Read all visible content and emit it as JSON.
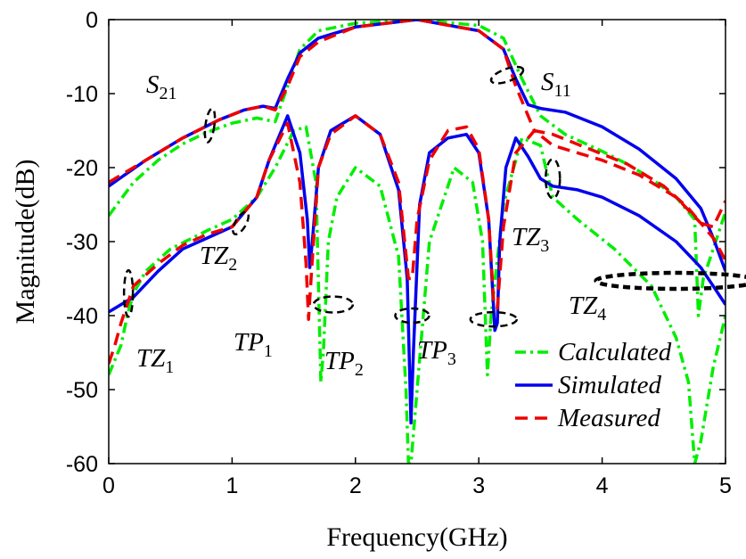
{
  "chart_data": {
    "type": "line",
    "title": "",
    "xlabel": "Frequency(GHz)",
    "ylabel": "Magnitude(dB)",
    "xlim": [
      0,
      5
    ],
    "ylim": [
      -60,
      0
    ],
    "xticks": [
      0,
      1,
      2,
      3,
      4,
      5
    ],
    "yticks": [
      0,
      -10,
      -20,
      -30,
      -40,
      -50,
      -60
    ],
    "xtick_labels": [
      "0",
      "1",
      "2",
      "3",
      "4",
      "5"
    ],
    "ytick_labels": [
      "0",
      "-10",
      "-20",
      "-30",
      "-40",
      "-50",
      "-60"
    ],
    "grid": false,
    "legend_position": "bottom-right",
    "series": [
      {
        "name": "Calculated",
        "color": "#00ee00",
        "dash": "dash-dot",
        "curves": [
          {
            "label": "S21",
            "x": [
              0,
              0.2,
              0.4,
              0.6,
              0.8,
              1.0,
              1.2,
              1.35,
              1.45,
              1.55,
              1.7,
              2.0,
              2.5,
              3.0,
              3.2,
              3.35,
              3.5,
              3.7,
              4.0,
              4.2,
              4.4,
              4.6,
              4.75,
              4.78,
              4.82,
              4.9,
              5.0
            ],
            "y": [
              -26.5,
              -22,
              -19,
              -16.8,
              -15.2,
              -14,
              -13.3,
              -13.8,
              -9,
              -4,
              -1.5,
              -0.5,
              0,
              -0.8,
              -2.5,
              -8,
              -13,
              -15.5,
              -17.8,
              -19.5,
              -21.5,
              -24,
              -27,
              -40,
              -35,
              -31,
              -26
            ]
          },
          {
            "label": "S11",
            "x": [
              0,
              0.1,
              0.15,
              0.2,
              0.3,
              0.5,
              0.8,
              1.0,
              1.2,
              1.35,
              1.5,
              1.6,
              1.68,
              1.72,
              1.74,
              1.78,
              1.85,
              2.0,
              2.2,
              2.35,
              2.41,
              2.43,
              2.45,
              2.5,
              2.6,
              2.8,
              2.95,
              3.03,
              3.07,
              3.1,
              3.2,
              3.35,
              3.5,
              3.6,
              3.8,
              4.1,
              4.4,
              4.6,
              4.7,
              4.75,
              4.8,
              4.9,
              5.0
            ],
            "y": [
              -48,
              -44,
              -40,
              -37,
              -34,
              -31,
              -28.5,
              -27,
              -24,
              -20,
              -15,
              -14.5,
              -22,
              -49,
              -45,
              -30,
              -24,
              -20,
              -22.5,
              -32,
              -50,
              -60,
              -60,
              -50,
              -30,
              -20,
              -22,
              -30,
              -48,
              -40,
              -25,
              -16,
              -17,
              -24,
              -27,
              -31,
              -36,
              -43,
              -49,
              -60,
              -57,
              -47,
              -40
            ]
          }
        ]
      },
      {
        "name": "Simulated",
        "color": "#0000ee",
        "dash": "solid",
        "curves": [
          {
            "label": "S21",
            "x": [
              0,
              0.3,
              0.6,
              0.9,
              1.1,
              1.25,
              1.35,
              1.45,
              1.55,
              1.7,
              2.0,
              2.5,
              3.0,
              3.2,
              3.3,
              3.4,
              3.5,
              3.7,
              4.0,
              4.3,
              4.6,
              4.8,
              4.9,
              5.0
            ],
            "y": [
              -22.5,
              -19,
              -16,
              -13.5,
              -12.2,
              -11.7,
              -12,
              -8,
              -4.5,
              -2.5,
              -1,
              0,
              -1.5,
              -4,
              -8,
              -11.5,
              -12,
              -12.5,
              -14.5,
              -17.5,
              -21.5,
              -25.5,
              -29.5,
              -34
            ]
          },
          {
            "label": "S11",
            "x": [
              0,
              0.2,
              0.4,
              0.6,
              0.8,
              1.0,
              1.2,
              1.3,
              1.45,
              1.55,
              1.61,
              1.63,
              1.65,
              1.7,
              1.8,
              2.0,
              2.2,
              2.35,
              2.42,
              2.45,
              2.47,
              2.52,
              2.6,
              2.75,
              2.9,
              3.0,
              3.08,
              3.13,
              3.15,
              3.17,
              3.22,
              3.3,
              3.4,
              3.5,
              3.6,
              3.8,
              4.0,
              4.3,
              4.6,
              4.8,
              4.9,
              5.0
            ],
            "y": [
              -39.5,
              -37.5,
              -34,
              -31,
              -29.5,
              -28,
              -24,
              -19,
              -13,
              -18,
              -27,
              -33.5,
              -30,
              -20,
              -15,
              -13,
              -15.5,
              -23,
              -35,
              -54.5,
              -45,
              -25,
              -18,
              -16,
              -15.5,
              -18,
              -27,
              -42,
              -41,
              -30,
              -20,
              -16,
              -18.5,
              -21.5,
              -22.5,
              -23,
              -24,
              -26.5,
              -30,
              -33.5,
              -36,
              -38.5
            ]
          }
        ]
      },
      {
        "name": "Measured",
        "color": "#ee0000",
        "dash": "dashed",
        "curves": [
          {
            "label": "S21",
            "x": [
              0,
              0.3,
              0.6,
              0.9,
              1.1,
              1.25,
              1.35,
              1.45,
              1.55,
              1.7,
              2.0,
              2.5,
              3.0,
              3.2,
              3.3,
              3.45,
              3.6,
              3.9,
              4.2,
              4.5,
              4.7,
              4.8,
              4.9,
              5.0
            ],
            "y": [
              -22,
              -19,
              -16,
              -13.5,
              -12.2,
              -11.7,
              -12.2,
              -9,
              -5,
              -3,
              -1,
              0,
              -1.5,
              -4,
              -9,
              -15,
              -15.5,
              -17.5,
              -19.5,
              -22.5,
              -25.5,
              -27.5,
              -28,
              -24.5
            ]
          },
          {
            "label": "S11",
            "x": [
              0,
              0.05,
              0.1,
              0.2,
              0.4,
              0.6,
              0.8,
              1.0,
              1.2,
              1.3,
              1.45,
              1.55,
              1.6,
              1.62,
              1.64,
              1.7,
              1.8,
              2.0,
              2.2,
              2.35,
              2.43,
              2.46,
              2.5,
              2.6,
              2.75,
              2.9,
              3.0,
              3.08,
              3.12,
              3.15,
              3.2,
              3.3,
              3.45,
              3.6,
              3.8,
              4.0,
              4.3,
              4.6,
              4.8,
              4.9,
              5.0
            ],
            "y": [
              -46.5,
              -44,
              -41,
              -36,
              -33,
              -30.5,
              -29,
              -28,
              -24,
              -19,
              -14,
              -22,
              -33,
              -40.5,
              -35,
              -20,
              -15.5,
              -13,
              -15.5,
              -22,
              -35,
              -35,
              -27,
              -19,
              -15,
              -14.5,
              -17.5,
              -27,
              -38,
              -39,
              -28,
              -18,
              -15,
              -17,
              -18,
              -19,
              -21,
              -24,
              -27.5,
              -29.5,
              -32.5
            ]
          }
        ]
      }
    ],
    "annotations": [
      {
        "base": "S",
        "sub": "21"
      },
      {
        "base": "S",
        "sub": "11"
      },
      {
        "base": "TZ",
        "sub": "1"
      },
      {
        "base": "TZ",
        "sub": "2"
      },
      {
        "base": "TZ",
        "sub": "3"
      },
      {
        "base": "TZ",
        "sub": "4"
      },
      {
        "base": "TP",
        "sub": "1"
      },
      {
        "base": "TP",
        "sub": "2"
      },
      {
        "base": "TP",
        "sub": "3"
      }
    ]
  }
}
